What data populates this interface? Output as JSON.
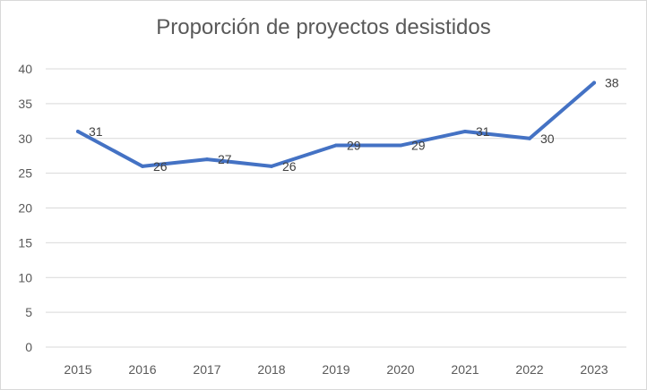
{
  "chart_data": {
    "type": "line",
    "title": "Proporción de proyectos desistidos",
    "xlabel": "",
    "ylabel": "",
    "categories": [
      "2015",
      "2016",
      "2017",
      "2018",
      "2019",
      "2020",
      "2021",
      "2022",
      "2023"
    ],
    "series": [
      {
        "values": [
          31,
          26,
          27,
          26,
          29,
          29,
          31,
          30,
          38
        ],
        "color": "#4472c4"
      }
    ],
    "ylim": [
      0,
      40
    ],
    "yticks": [
      0,
      5,
      10,
      15,
      20,
      25,
      30,
      35,
      40
    ],
    "grid": true,
    "data_labels": true,
    "gridline_color": "#d9d9d9"
  }
}
